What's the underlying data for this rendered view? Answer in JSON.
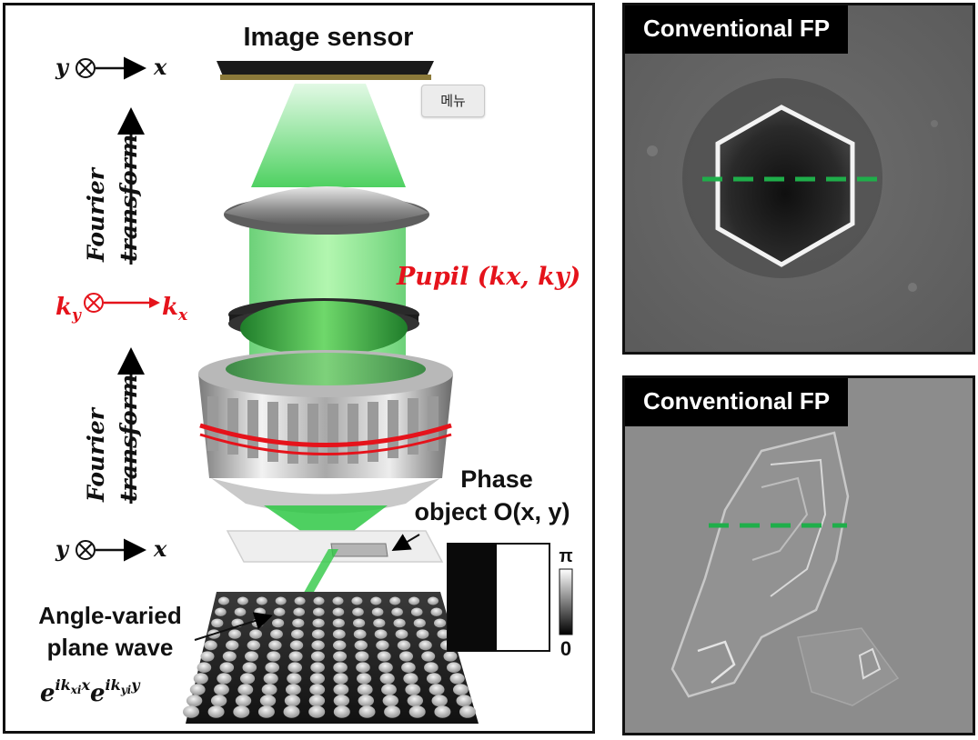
{
  "left_panel": {
    "image_sensor_label": "Image sensor",
    "axes_top": {
      "y": "y",
      "x": "x"
    },
    "fourier_label_line1": "Fourier",
    "fourier_label_line2": "transform",
    "pupil_label": "Pupil (kx, ky)",
    "pupil_axes": {
      "ky": "k",
      "ky_sub": "y",
      "kx": "k",
      "kx_sub": "x"
    },
    "axes_bottom": {
      "y": "y",
      "x": "x"
    },
    "phase_object_line1": "Phase",
    "phase_object_line2": "object O(x, y)",
    "angle_varied_line1": "Angle-varied",
    "angle_varied_line2": "plane wave",
    "plane_wave_formula": "e^(ikxi x) e^(ikyi y)",
    "colorbar_max": "π",
    "colorbar_min": "0",
    "menu_button": "메뉴"
  },
  "right_panels": [
    {
      "title": "Conventional FP"
    },
    {
      "title": "Conventional FP"
    }
  ],
  "colors": {
    "beam_green": "#22c23a",
    "dashed_line": "#1fae4a",
    "pupil_red": "#e5131b",
    "frame": "#111111"
  }
}
